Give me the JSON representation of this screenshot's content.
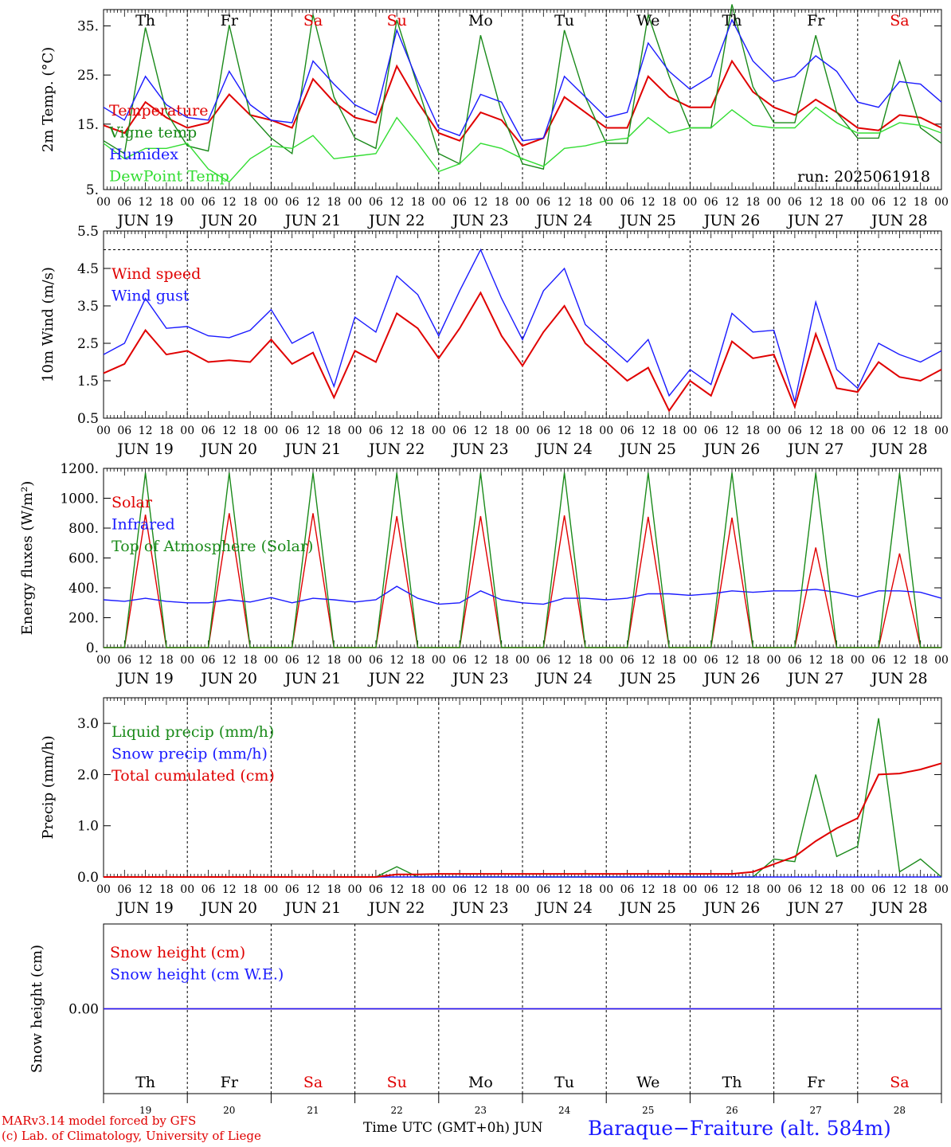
{
  "run_label": "run: 2025061918",
  "hour_ticks": [
    "00",
    "06",
    "12",
    "18"
  ],
  "days": [
    {
      "abbr": "Th",
      "date": "JUN 19",
      "num": "19",
      "weekend": false
    },
    {
      "abbr": "Fr",
      "date": "JUN 20",
      "num": "20",
      "weekend": false
    },
    {
      "abbr": "Sa",
      "date": "JUN 21",
      "num": "21",
      "weekend": true
    },
    {
      "abbr": "Su",
      "date": "JUN 22",
      "num": "22",
      "weekend": true
    },
    {
      "abbr": "Mo",
      "date": "JUN 23",
      "num": "23",
      "weekend": false
    },
    {
      "abbr": "Tu",
      "date": "JUN 24",
      "num": "24",
      "weekend": false
    },
    {
      "abbr": "We",
      "date": "JUN 25",
      "num": "25",
      "weekend": false
    },
    {
      "abbr": "Th",
      "date": "JUN 26",
      "num": "26",
      "weekend": false
    },
    {
      "abbr": "Fr",
      "date": "JUN 27",
      "num": "27",
      "weekend": false
    },
    {
      "abbr": "Sa",
      "date": "JUN 28",
      "num": "28",
      "weekend": true
    }
  ],
  "colors": {
    "red": "#e00000",
    "green": "#1a8a1a",
    "blue": "#1a1aff",
    "lightgreen": "#33dd33",
    "weekend": "#e00000"
  },
  "footer": {
    "line1": "MARv3.14 model forced by GFS",
    "line2": "(c) Lab. of Climatology, University of Liege",
    "axis_label": "Time UTC (GMT+0h)",
    "month": "JUN",
    "station": "Baraque−Fraiture (alt. 584m)"
  },
  "chart_data": [
    {
      "type": "line",
      "ylabel": "2m Temp. (°C)",
      "ylim": [
        5,
        40
      ],
      "yticks": [
        "5.",
        "15.",
        "25.",
        "35."
      ],
      "x": [
        "06-19 00",
        "06-19 06",
        "06-19 12",
        "06-19 18",
        "06-20 00",
        "06-20 06",
        "06-20 12",
        "06-20 18",
        "06-21 00",
        "06-21 06",
        "06-21 12",
        "06-21 18",
        "06-22 00",
        "06-22 06",
        "06-22 12",
        "06-22 18",
        "06-23 00",
        "06-23 06",
        "06-23 12",
        "06-23 18",
        "06-24 00",
        "06-24 06",
        "06-24 12",
        "06-24 18",
        "06-25 00",
        "06-25 06",
        "06-25 12",
        "06-25 18",
        "06-26 00",
        "06-26 06",
        "06-26 12",
        "06-26 18",
        "06-27 00",
        "06-27 06",
        "06-27 12",
        "06-27 18",
        "06-28 00",
        "06-28 06",
        "06-28 12",
        "06-28 18",
        "06-29 00"
      ],
      "series": [
        {
          "name": "Temperature",
          "color": "red",
          "values": [
            17.5,
            16,
            22,
            19,
            17,
            18,
            23.5,
            19.5,
            18.5,
            17,
            26.5,
            22,
            19,
            18,
            29,
            22,
            16,
            14.5,
            20,
            18.5,
            13.5,
            15,
            23,
            20,
            17,
            17,
            27,
            23,
            21,
            21,
            30,
            24,
            21,
            19.5,
            22.5,
            20,
            17,
            16.5,
            19.5,
            19,
            17
          ]
        },
        {
          "name": "Vigne temp",
          "color": "green",
          "values": [
            14.5,
            12,
            36.5,
            20,
            13.5,
            12.5,
            37,
            19.5,
            15,
            12,
            39,
            23,
            15,
            13,
            38,
            25,
            12,
            10,
            35,
            20,
            10,
            9,
            36,
            23,
            14,
            14,
            39,
            27,
            17,
            17,
            41,
            25,
            18,
            18,
            35,
            20,
            15,
            15,
            30,
            17,
            14
          ]
        },
        {
          "name": "Humidex",
          "color": "blue",
          "values": [
            21,
            18.5,
            27,
            21.5,
            19,
            18.5,
            28,
            21.5,
            18.5,
            18,
            30,
            25.5,
            21.5,
            19.5,
            36,
            26,
            17,
            15.5,
            23.5,
            22,
            14.5,
            15,
            27,
            23,
            19,
            20,
            33.5,
            28,
            24.5,
            27,
            38,
            30,
            26,
            27,
            31,
            28,
            22,
            21,
            26,
            25.5,
            22
          ]
        },
        {
          "name": "DewPoint Temp",
          "color": "lightgreen",
          "values": [
            14,
            11,
            13,
            13,
            14,
            9,
            6.5,
            11,
            13.5,
            13,
            15.5,
            11,
            11.5,
            12,
            19,
            14,
            8.5,
            10,
            14,
            13,
            11,
            9.5,
            13,
            13.5,
            14.5,
            15,
            19,
            16,
            17,
            17,
            20.5,
            17.5,
            17,
            17,
            21,
            18,
            16,
            16,
            18,
            17.5,
            16
          ]
        }
      ]
    },
    {
      "type": "line",
      "ylabel": "10m Wind (m/s)",
      "ylim": [
        0.5,
        5.5
      ],
      "yticks": [
        "0.5",
        "1.5",
        "2.5",
        "3.5",
        "4.5",
        "5.5"
      ],
      "x": [
        "06-19 00",
        "06-19 06",
        "06-19 12",
        "06-19 18",
        "06-20 00",
        "06-20 06",
        "06-20 12",
        "06-20 18",
        "06-21 00",
        "06-21 06",
        "06-21 12",
        "06-21 18",
        "06-22 00",
        "06-22 06",
        "06-22 12",
        "06-22 18",
        "06-23 00",
        "06-23 06",
        "06-23 12",
        "06-23 18",
        "06-24 00",
        "06-24 06",
        "06-24 12",
        "06-24 18",
        "06-25 00",
        "06-25 06",
        "06-25 12",
        "06-25 18",
        "06-26 00",
        "06-26 06",
        "06-26 12",
        "06-26 18",
        "06-27 00",
        "06-27 06",
        "06-27 12",
        "06-27 18",
        "06-28 00",
        "06-28 06",
        "06-28 12",
        "06-28 18",
        "06-29 00"
      ],
      "series": [
        {
          "name": "Wind speed",
          "color": "red",
          "values": [
            1.7,
            1.95,
            2.85,
            2.2,
            2.3,
            2.0,
            2.05,
            2.0,
            2.6,
            1.95,
            2.25,
            1.05,
            2.3,
            2.0,
            3.3,
            2.9,
            2.1,
            2.9,
            3.85,
            2.7,
            1.9,
            2.8,
            3.5,
            2.5,
            2.0,
            1.5,
            1.85,
            0.7,
            1.5,
            1.1,
            2.55,
            2.1,
            2.2,
            0.8,
            2.75,
            1.3,
            1.2,
            2.0,
            1.6,
            1.5,
            1.8
          ]
        },
        {
          "name": "Wind gust",
          "color": "blue",
          "values": [
            2.2,
            2.5,
            3.7,
            2.9,
            2.95,
            2.7,
            2.65,
            2.85,
            3.4,
            2.5,
            2.8,
            1.35,
            3.2,
            2.8,
            4.3,
            3.8,
            2.7,
            3.9,
            5.0,
            3.7,
            2.6,
            3.9,
            4.5,
            3.0,
            2.5,
            2.0,
            2.6,
            1.1,
            1.8,
            1.4,
            3.3,
            2.8,
            2.85,
            0.95,
            3.6,
            1.8,
            1.3,
            2.5,
            2.2,
            2.0,
            2.3
          ]
        }
      ],
      "reference_line": 5.0
    },
    {
      "type": "line",
      "ylabel": "Energy fluxes (W/m²)",
      "ylim": [
        0,
        1200
      ],
      "yticks": [
        "0.",
        "200.",
        "400.",
        "600.",
        "800.",
        "1000.",
        "1200."
      ],
      "x": [
        "06-19 00",
        "06-19 06",
        "06-19 12",
        "06-19 18",
        "06-20 00",
        "06-20 06",
        "06-20 12",
        "06-20 18",
        "06-21 00",
        "06-21 06",
        "06-21 12",
        "06-21 18",
        "06-22 00",
        "06-22 06",
        "06-22 12",
        "06-22 18",
        "06-23 00",
        "06-23 06",
        "06-23 12",
        "06-23 18",
        "06-24 00",
        "06-24 06",
        "06-24 12",
        "06-24 18",
        "06-25 00",
        "06-25 06",
        "06-25 12",
        "06-25 18",
        "06-26 00",
        "06-26 06",
        "06-26 12",
        "06-26 18",
        "06-27 00",
        "06-27 06",
        "06-27 12",
        "06-27 18",
        "06-28 00",
        "06-28 06",
        "06-28 12",
        "06-28 18",
        "06-29 00"
      ],
      "series": [
        {
          "name": "Solar",
          "color": "red",
          "values": [
            0,
            0,
            890,
            0,
            0,
            0,
            900,
            0,
            0,
            0,
            900,
            0,
            0,
            0,
            880,
            0,
            0,
            0,
            880,
            0,
            0,
            0,
            885,
            0,
            0,
            0,
            875,
            0,
            0,
            0,
            870,
            0,
            0,
            0,
            670,
            0,
            0,
            0,
            630,
            0,
            0
          ]
        },
        {
          "name": "Infrared",
          "color": "blue",
          "values": [
            320,
            310,
            330,
            310,
            300,
            300,
            320,
            305,
            335,
            300,
            330,
            320,
            305,
            320,
            410,
            330,
            290,
            300,
            380,
            320,
            300,
            290,
            330,
            330,
            320,
            330,
            360,
            360,
            350,
            360,
            380,
            370,
            380,
            380,
            390,
            370,
            340,
            380,
            380,
            370,
            330
          ]
        },
        {
          "name": "Top of Atmosphere (Solar)",
          "color": "green",
          "values": [
            0,
            0,
            1170,
            0,
            0,
            0,
            1170,
            0,
            0,
            0,
            1170,
            0,
            0,
            0,
            1170,
            0,
            0,
            0,
            1170,
            0,
            0,
            0,
            1170,
            0,
            0,
            0,
            1170,
            0,
            0,
            0,
            1170,
            0,
            0,
            0,
            1170,
            0,
            0,
            0,
            1170,
            0,
            0
          ]
        }
      ]
    },
    {
      "type": "line",
      "ylabel": "Precip (mm/h)",
      "ylim": [
        0,
        3.5
      ],
      "yticks": [
        "0.0",
        "1.0",
        "2.0",
        "3.0"
      ],
      "x": [
        "06-19 00",
        "06-19 06",
        "06-19 12",
        "06-19 18",
        "06-20 00",
        "06-20 06",
        "06-20 12",
        "06-20 18",
        "06-21 00",
        "06-21 06",
        "06-21 12",
        "06-21 18",
        "06-22 00",
        "06-22 06",
        "06-22 12",
        "06-22 18",
        "06-23 00",
        "06-23 06",
        "06-23 12",
        "06-23 18",
        "06-24 00",
        "06-24 06",
        "06-24 12",
        "06-24 18",
        "06-25 00",
        "06-25 06",
        "06-25 12",
        "06-25 18",
        "06-26 00",
        "06-26 06",
        "06-26 12",
        "06-26 18",
        "06-27 00",
        "06-27 06",
        "06-27 12",
        "06-27 18",
        "06-28 00",
        "06-28 06",
        "06-28 12",
        "06-28 18",
        "06-29 00"
      ],
      "series": [
        {
          "name": "Liquid precip (mm/h)",
          "color": "green",
          "values": [
            0,
            0,
            0,
            0,
            0,
            0,
            0,
            0,
            0,
            0,
            0,
            0,
            0,
            0,
            0.2,
            0,
            0,
            0,
            0,
            0,
            0,
            0,
            0,
            0,
            0,
            0,
            0,
            0,
            0,
            0,
            0,
            0,
            0.35,
            0.3,
            2.0,
            0.4,
            0.6,
            3.1,
            0.1,
            0.35,
            0
          ]
        },
        {
          "name": "Snow precip (mm/h)",
          "color": "blue",
          "values": [
            0,
            0,
            0,
            0,
            0,
            0,
            0,
            0,
            0,
            0,
            0,
            0,
            0,
            0,
            0,
            0,
            0,
            0,
            0,
            0,
            0,
            0,
            0,
            0,
            0,
            0,
            0,
            0,
            0,
            0,
            0,
            0,
            0,
            0,
            0,
            0,
            0,
            0,
            0,
            0,
            0
          ]
        },
        {
          "name": "Total cumulated (cm)",
          "color": "red",
          "values": [
            0,
            0,
            0,
            0,
            0,
            0,
            0,
            0,
            0,
            0,
            0,
            0,
            0,
            0,
            0.05,
            0.05,
            0.06,
            0.06,
            0.06,
            0.06,
            0.06,
            0.06,
            0.06,
            0.06,
            0.06,
            0.06,
            0.06,
            0.06,
            0.06,
            0.06,
            0.06,
            0.1,
            0.25,
            0.4,
            0.7,
            0.95,
            1.15,
            2.0,
            2.02,
            2.1,
            2.22
          ]
        }
      ]
    },
    {
      "type": "line",
      "ylabel": "Snow height (cm)",
      "yticks": [
        "0.00"
      ],
      "series": [
        {
          "name": "Snow height (cm)",
          "color": "red",
          "values": [
            0,
            0
          ]
        },
        {
          "name": "Snow height (cm W.E.)",
          "color": "blue",
          "values": [
            0,
            0
          ]
        }
      ]
    }
  ]
}
